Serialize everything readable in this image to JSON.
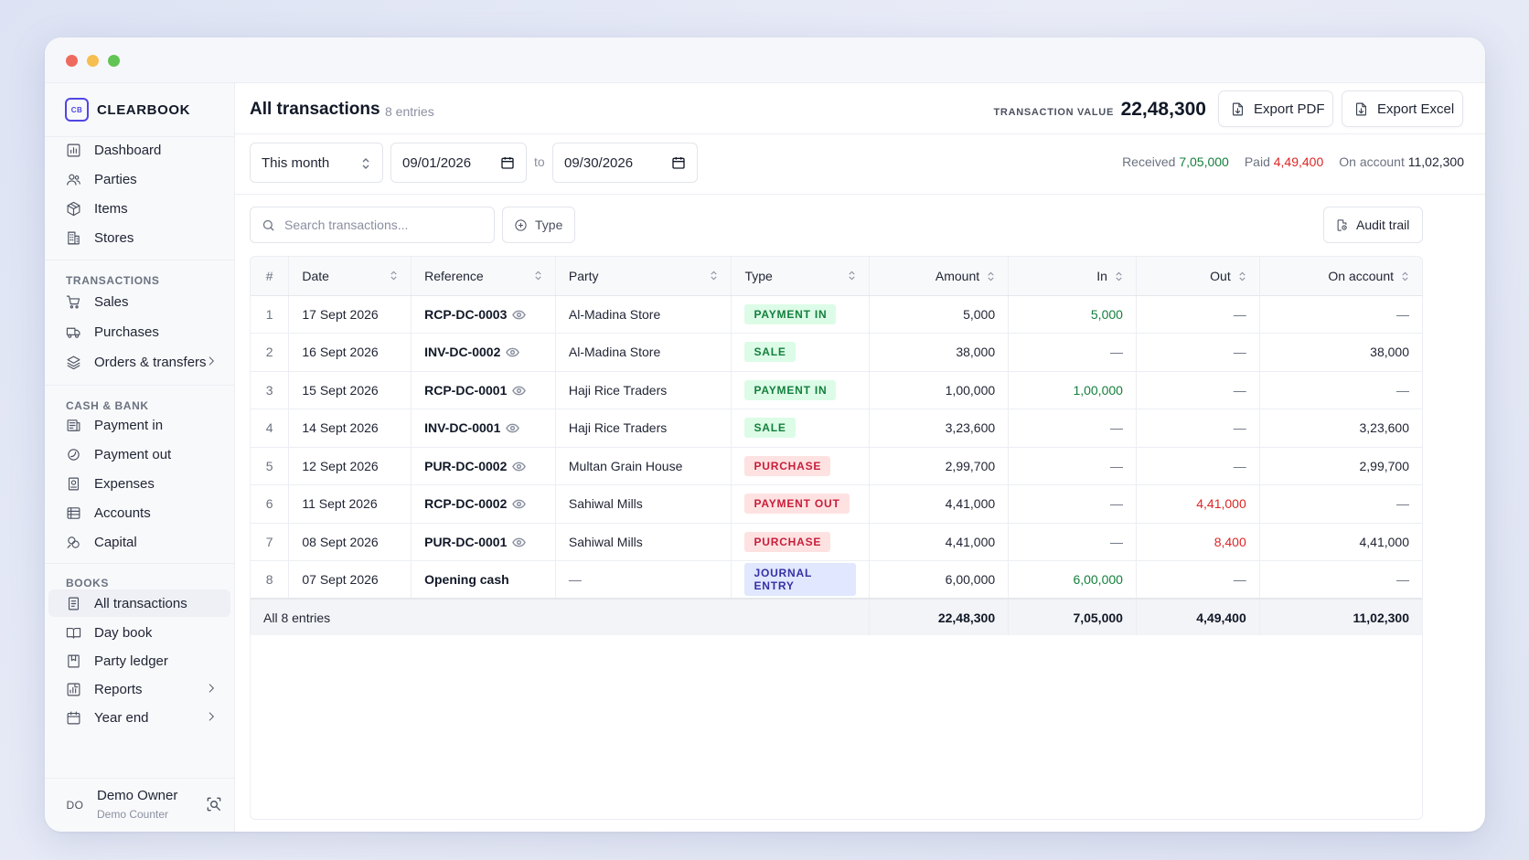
{
  "brand": {
    "logo": "CB",
    "name": "CLEARBOOK"
  },
  "sidebar": {
    "main": [
      {
        "label": "Dashboard",
        "icon": "dashboard-icon"
      },
      {
        "label": "Parties",
        "icon": "users-icon"
      },
      {
        "label": "Items",
        "icon": "box-icon"
      },
      {
        "label": "Stores",
        "icon": "building-icon"
      }
    ],
    "transactions_heading": "TRANSACTIONS",
    "transactions": [
      {
        "label": "Sales",
        "icon": "cart-icon"
      },
      {
        "label": "Purchases",
        "icon": "truck-icon"
      },
      {
        "label": "Orders & transfers",
        "icon": "layers-icon",
        "has_submenu": true
      }
    ],
    "cash_heading": "CASH & BANK",
    "cash": [
      {
        "label": "Payment in",
        "icon": "receipt-icon"
      },
      {
        "label": "Payment out",
        "icon": "coin-icon"
      },
      {
        "label": "Expenses",
        "icon": "expense-icon"
      },
      {
        "label": "Accounts",
        "icon": "bank-icon"
      },
      {
        "label": "Capital",
        "icon": "capital-icon"
      }
    ],
    "books_heading": "BOOKS",
    "books": [
      {
        "label": "All transactions",
        "icon": "ledger-icon",
        "active": true
      },
      {
        "label": "Day book",
        "icon": "book-icon"
      },
      {
        "label": "Party ledger",
        "icon": "bookmark-icon"
      },
      {
        "label": "Reports",
        "icon": "reports-icon",
        "has_submenu": true
      },
      {
        "label": "Year end",
        "icon": "calendar-icon",
        "has_submenu": true
      }
    ],
    "user": {
      "initials": "DO",
      "name": "Demo Owner",
      "role": "Demo Counter"
    }
  },
  "header": {
    "title": "All transactions",
    "count": "8 entries",
    "value_label": "TRANSACTION VALUE",
    "value": "22,48,300",
    "export_pdf": "Export PDF",
    "export_excel": "Export Excel"
  },
  "filters": {
    "period": "This month",
    "date_from": "09/01/2026",
    "to_label": "to",
    "date_to": "09/30/2026",
    "received_label": "Received",
    "received": "7,05,000",
    "paid_label": "Paid",
    "paid": "4,49,400",
    "on_account_label": "On account",
    "on_account": "11,02,300",
    "search_placeholder": "Search transactions...",
    "type_label": "Type",
    "audit_label": "Audit trail"
  },
  "table": {
    "columns": [
      "#",
      "Date",
      "Reference",
      "Party",
      "Type",
      "Amount",
      "In",
      "Out",
      "On account"
    ],
    "rows": [
      {
        "n": "1",
        "date": "17 Sept 2026",
        "ref": "RCP-DC-0003",
        "party": "Al-Madina Store",
        "type": "PAYMENT IN",
        "tone": "green",
        "amount": "5,000",
        "in": "5,000",
        "out": "—",
        "on_account": "—"
      },
      {
        "n": "2",
        "date": "16 Sept 2026",
        "ref": "INV-DC-0002",
        "party": "Al-Madina Store",
        "type": "SALE",
        "tone": "green",
        "amount": "38,000",
        "in": "—",
        "out": "—",
        "on_account": "38,000"
      },
      {
        "n": "3",
        "date": "15 Sept 2026",
        "ref": "RCP-DC-0001",
        "party": "Haji Rice Traders",
        "type": "PAYMENT IN",
        "tone": "green",
        "amount": "1,00,000",
        "in": "1,00,000",
        "out": "—",
        "on_account": "—"
      },
      {
        "n": "4",
        "date": "14 Sept 2026",
        "ref": "INV-DC-0001",
        "party": "Haji Rice Traders",
        "type": "SALE",
        "tone": "green",
        "amount": "3,23,600",
        "in": "—",
        "out": "—",
        "on_account": "3,23,600"
      },
      {
        "n": "5",
        "date": "12 Sept 2026",
        "ref": "PUR-DC-0002",
        "party": "Multan Grain House",
        "type": "PURCHASE",
        "tone": "red",
        "amount": "2,99,700",
        "in": "—",
        "out": "—",
        "on_account": "2,99,700"
      },
      {
        "n": "6",
        "date": "11 Sept 2026",
        "ref": "RCP-DC-0002",
        "party": "Sahiwal Mills",
        "type": "PAYMENT OUT",
        "tone": "red",
        "amount": "4,41,000",
        "in": "—",
        "out": "4,41,000",
        "on_account": "—"
      },
      {
        "n": "7",
        "date": "08 Sept 2026",
        "ref": "PUR-DC-0001",
        "party": "Sahiwal Mills",
        "type": "PURCHASE",
        "tone": "red",
        "amount": "4,41,000",
        "in": "—",
        "out": "8,400",
        "on_account": "4,41,000"
      },
      {
        "n": "8",
        "date": "07 Sept 2026",
        "ref": "Opening cash",
        "party": "—",
        "type": "JOURNAL ENTRY",
        "tone": "blue",
        "amount": "6,00,000",
        "in": "6,00,000",
        "out": "—",
        "on_account": "—"
      }
    ],
    "footer": {
      "label": "All 8 entries",
      "amount": "22,48,300",
      "in": "7,05,000",
      "out": "4,49,400",
      "on_account": "11,02,300"
    }
  }
}
